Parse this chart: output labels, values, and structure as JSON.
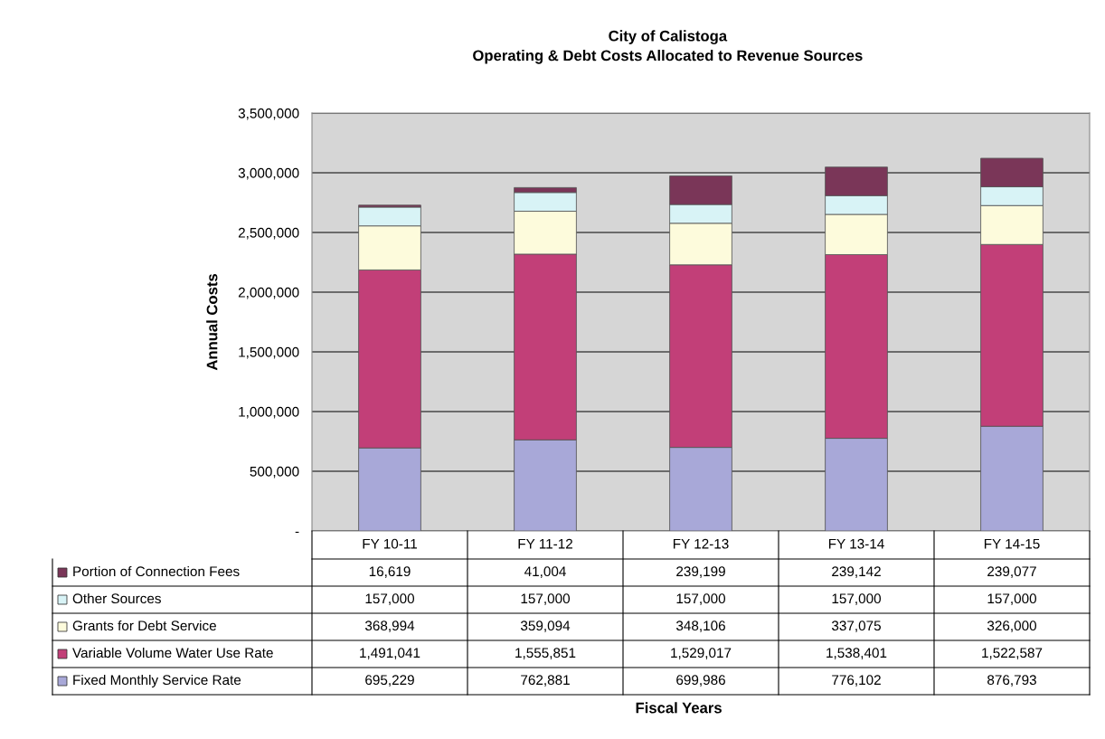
{
  "chart_data": {
    "type": "bar",
    "stacked": true,
    "title": "City of Calistoga\nOperating & Debt Costs Allocated to Revenue Sources",
    "annotations": [
      "Fiscal Years"
    ],
    "ylabel": "Annual Costs",
    "categories": [
      "FY 10-11",
      "FY 11-12",
      "FY 12-13",
      "FY 13-14",
      "FY 14-15"
    ],
    "series": [
      {
        "name": "Fixed Monthly Service Rate",
        "color": "#a8a8d8",
        "values": [
          695229,
          762881,
          699986,
          776102,
          876793
        ],
        "value_labels": [
          "695,229",
          "762,881",
          "699,986",
          "776,102",
          "876,793"
        ]
      },
      {
        "name": "Variable Volume Water Use Rate",
        "color": "#c23f78",
        "values": [
          1491041,
          1555851,
          1529017,
          1538401,
          1522587
        ],
        "value_labels": [
          "1,491,041",
          "1,555,851",
          "1,529,017",
          "1,538,401",
          "1,522,587"
        ]
      },
      {
        "name": "Grants for Debt Service",
        "color": "#fdfbdc",
        "values": [
          368994,
          359094,
          348106,
          337075,
          326000
        ],
        "value_labels": [
          "368,994",
          "359,094",
          "348,106",
          "337,075",
          "326,000"
        ]
      },
      {
        "name": "Other Sources",
        "color": "#d8f3f6",
        "values": [
          157000,
          157000,
          157000,
          157000,
          157000
        ],
        "value_labels": [
          "157,000",
          "157,000",
          "157,000",
          "157,000",
          "157,000"
        ]
      },
      {
        "name": "Portion of Connection Fees",
        "color": "#7a3658",
        "values": [
          16619,
          41004,
          239199,
          239142,
          239077
        ],
        "value_labels": [
          "16,619",
          "41,004",
          "239,199",
          "239,142",
          "239,077"
        ]
      }
    ],
    "ylim": [
      0,
      3500000
    ],
    "yticks": [
      {
        "value": 0,
        "label": "-"
      },
      {
        "value": 500000,
        "label": "500,000"
      },
      {
        "value": 1000000,
        "label": "1,000,000"
      },
      {
        "value": 1500000,
        "label": "1,500,000"
      },
      {
        "value": 2000000,
        "label": "2,000,000"
      },
      {
        "value": 2500000,
        "label": "2,500,000"
      },
      {
        "value": 3000000,
        "label": "3,000,000"
      },
      {
        "value": 3500000,
        "label": "3,500,000"
      }
    ],
    "grid": "y",
    "legend": "bottom left"
  }
}
